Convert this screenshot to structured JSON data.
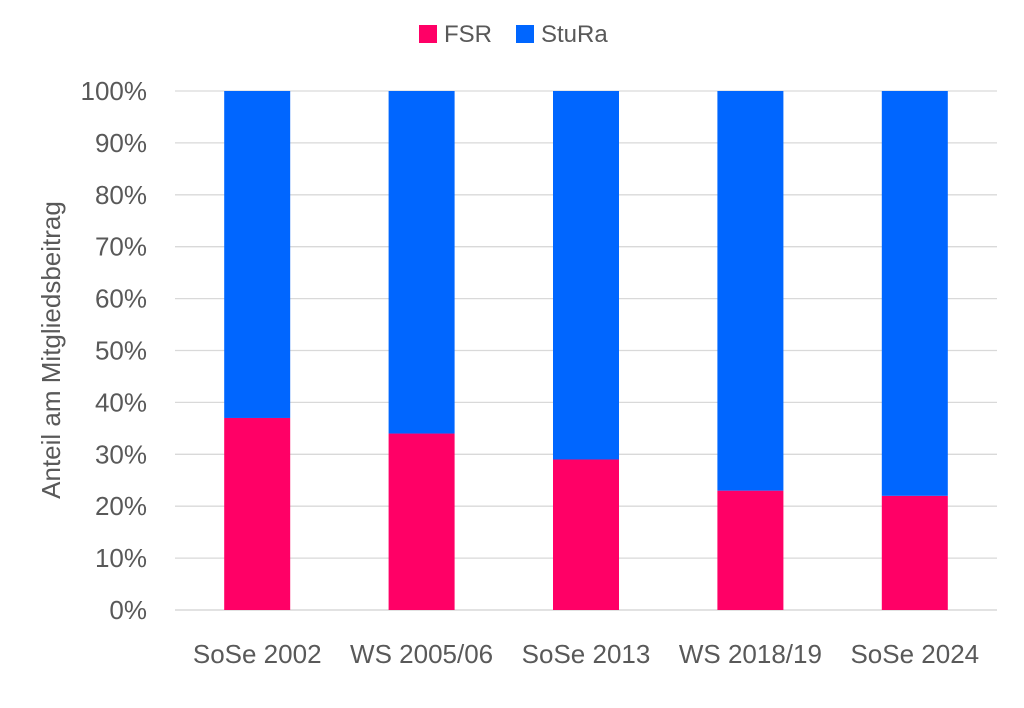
{
  "chart_data": {
    "type": "bar",
    "stacked": true,
    "categories": [
      "SoSe 2002",
      "WS 2005/06",
      "SoSe 2013",
      "WS 2018/19",
      "SoSe 2024"
    ],
    "series": [
      {
        "name": "FSR",
        "values": [
          37,
          34,
          29,
          23,
          22
        ],
        "color": "#ff0066"
      },
      {
        "name": "StuRa",
        "values": [
          63,
          66,
          71,
          77,
          78
        ],
        "color": "#0066ff"
      }
    ],
    "title": "",
    "xlabel": "",
    "ylabel": "Anteil am Mitgliedsbeitrag",
    "ylim": [
      0,
      100
    ],
    "ytick_labels": [
      "0%",
      "10%",
      "20%",
      "30%",
      "40%",
      "50%",
      "60%",
      "70%",
      "80%",
      "90%",
      "100%"
    ],
    "grid": true,
    "legend_position": "top-center"
  }
}
